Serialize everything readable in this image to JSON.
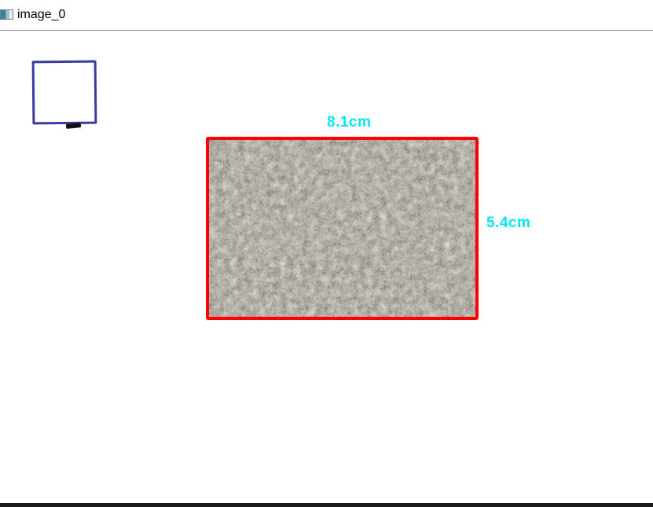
{
  "window": {
    "title": "image_0",
    "icon": "app-window-icon"
  },
  "reference": {
    "color": "#3a3aa6"
  },
  "measurement": {
    "box_color": "#ff0000",
    "label_color": "#00e8f0",
    "width_label": "8.1cm",
    "height_label": "5.4cm"
  }
}
